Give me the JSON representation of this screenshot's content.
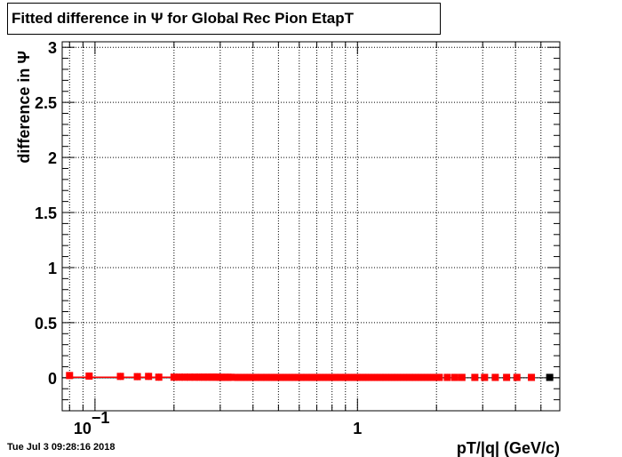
{
  "title": "Fitted difference in  Ψ  for Global Rec Pion EtapT",
  "timestamp": "Tue Jul  3 09:28:16 2018",
  "colors": {
    "series": "#ff0000",
    "last_point": "#000000",
    "grid": "#000000",
    "frame": "#000000"
  },
  "chart_data": {
    "type": "scatter",
    "title": "Fitted difference in  Ψ  for Global Rec Pion EtapT",
    "xlabel": "pT/|q| (GeV/c)",
    "ylabel": "difference in  Ψ",
    "x_scale": "log",
    "xlim": [
      0.075,
      5.9
    ],
    "ylim": [
      -0.3,
      3.05
    ],
    "grid": true,
    "y_ticks": [
      {
        "value": 0,
        "label": "0"
      },
      {
        "value": 0.5,
        "label": "0.5"
      },
      {
        "value": 1,
        "label": "1"
      },
      {
        "value": 1.5,
        "label": "1.5"
      },
      {
        "value": 2,
        "label": "2"
      },
      {
        "value": 2.5,
        "label": "2.5"
      },
      {
        "value": 3,
        "label": "3"
      }
    ],
    "x_ticks": [
      {
        "value": 0.1,
        "label_base": "10",
        "label_exp": "−1"
      },
      {
        "value": 1,
        "label_base": "1",
        "label_exp": ""
      }
    ],
    "series": [
      {
        "points": [
          {
            "x": 0.08,
            "y": 0.02
          },
          {
            "x": 0.095,
            "y": 0.015
          },
          {
            "x": 0.125,
            "y": 0.012
          },
          {
            "x": 0.145,
            "y": 0.01
          },
          {
            "x": 0.16,
            "y": 0.012
          },
          {
            "x": 0.175,
            "y": 0.005
          },
          {
            "x": 0.2,
            "y": 0.005
          },
          {
            "x": 0.21,
            "y": 0.005
          },
          {
            "x": 0.22,
            "y": 0.005
          },
          {
            "x": 0.23,
            "y": 0.005
          },
          {
            "x": 0.24,
            "y": 0.005
          },
          {
            "x": 0.25,
            "y": 0.005
          },
          {
            "x": 0.26,
            "y": 0.005
          },
          {
            "x": 0.27,
            "y": 0.005
          },
          {
            "x": 0.28,
            "y": 0.005
          },
          {
            "x": 0.29,
            "y": 0.005
          },
          {
            "x": 0.3,
            "y": 0.004
          },
          {
            "x": 0.31,
            "y": 0.004
          },
          {
            "x": 0.32,
            "y": 0.004
          },
          {
            "x": 0.33,
            "y": 0.004
          },
          {
            "x": 0.35,
            "y": 0.003
          },
          {
            "x": 0.37,
            "y": 0.003
          },
          {
            "x": 0.39,
            "y": 0.003
          },
          {
            "x": 0.41,
            "y": 0.003
          },
          {
            "x": 0.43,
            "y": 0.003
          },
          {
            "x": 0.45,
            "y": 0.003
          },
          {
            "x": 0.47,
            "y": 0.003
          },
          {
            "x": 0.49,
            "y": 0.003
          },
          {
            "x": 0.52,
            "y": 0.003
          },
          {
            "x": 0.55,
            "y": 0.003
          },
          {
            "x": 0.58,
            "y": 0.003
          },
          {
            "x": 0.61,
            "y": 0.003
          },
          {
            "x": 0.64,
            "y": 0.003
          },
          {
            "x": 0.67,
            "y": 0.003
          },
          {
            "x": 0.7,
            "y": 0.003
          },
          {
            "x": 0.74,
            "y": 0.003
          },
          {
            "x": 0.78,
            "y": 0.003
          },
          {
            "x": 0.82,
            "y": 0.003
          },
          {
            "x": 0.86,
            "y": 0.003
          },
          {
            "x": 0.9,
            "y": 0.003
          },
          {
            "x": 0.95,
            "y": 0.003
          },
          {
            "x": 1.0,
            "y": 0.003
          },
          {
            "x": 1.05,
            "y": 0.003
          },
          {
            "x": 1.1,
            "y": 0.003
          },
          {
            "x": 1.16,
            "y": 0.003
          },
          {
            "x": 1.22,
            "y": 0.003
          },
          {
            "x": 1.28,
            "y": 0.003
          },
          {
            "x": 1.35,
            "y": 0.003
          },
          {
            "x": 1.42,
            "y": 0.003
          },
          {
            "x": 1.5,
            "y": 0.003
          },
          {
            "x": 1.58,
            "y": 0.003
          },
          {
            "x": 1.66,
            "y": 0.003
          },
          {
            "x": 1.75,
            "y": 0.003
          },
          {
            "x": 1.85,
            "y": 0.003
          },
          {
            "x": 1.95,
            "y": 0.003
          },
          {
            "x": 2.05,
            "y": 0.003
          },
          {
            "x": 2.2,
            "y": 0.003
          },
          {
            "x": 2.35,
            "y": 0.003
          },
          {
            "x": 2.5,
            "y": 0.003
          },
          {
            "x": 2.8,
            "y": 0.003
          },
          {
            "x": 3.05,
            "y": 0.003
          },
          {
            "x": 3.35,
            "y": 0.003
          },
          {
            "x": 3.7,
            "y": 0.003
          },
          {
            "x": 4.05,
            "y": 0.003
          },
          {
            "x": 4.6,
            "y": 0.003
          }
        ]
      },
      {
        "points": [
          {
            "x": 5.4,
            "y": 0.003
          }
        ]
      }
    ]
  }
}
